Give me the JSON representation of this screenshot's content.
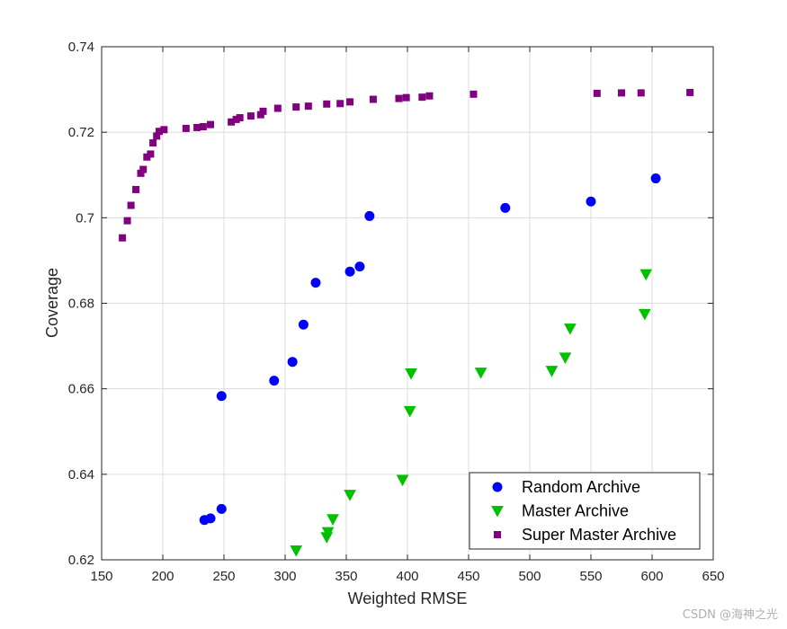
{
  "chart_data": {
    "type": "scatter",
    "xlabel": "Weighted RMSE",
    "ylabel": "Coverage",
    "xlim": [
      150,
      650
    ],
    "ylim": [
      0.62,
      0.74
    ],
    "xticks": [
      "150",
      "200",
      "250",
      "300",
      "350",
      "400",
      "450",
      "500",
      "550",
      "600",
      "650"
    ],
    "yticks": [
      "0.62",
      "0.64",
      "0.66",
      "0.68",
      "0.7",
      "0.72",
      "0.74"
    ],
    "grid": true,
    "legend_position": "bottom-right",
    "series": [
      {
        "name": "Random Archive",
        "marker": "circle",
        "color": "#0000ff",
        "points": [
          [
            234,
            0.6293
          ],
          [
            239,
            0.6297
          ],
          [
            248,
            0.6319
          ],
          [
            248,
            0.6583
          ],
          [
            291,
            0.6619
          ],
          [
            306,
            0.6663
          ],
          [
            315,
            0.675
          ],
          [
            325,
            0.6848
          ],
          [
            353,
            0.6874
          ],
          [
            361,
            0.6886
          ],
          [
            369,
            0.7004
          ],
          [
            480,
            0.7023
          ],
          [
            550,
            0.7038
          ],
          [
            603,
            0.7092
          ]
        ]
      },
      {
        "name": "Master Archive",
        "marker": "triangle-down",
        "color": "#00c000",
        "points": [
          [
            309,
            0.6222
          ],
          [
            334,
            0.6253
          ],
          [
            335,
            0.6265
          ],
          [
            339,
            0.6295
          ],
          [
            353,
            0.6352
          ],
          [
            396,
            0.6387
          ],
          [
            402,
            0.6548
          ],
          [
            403,
            0.6636
          ],
          [
            460,
            0.6638
          ],
          [
            518,
            0.6642
          ],
          [
            529,
            0.6673
          ],
          [
            533,
            0.6741
          ],
          [
            594,
            0.6775
          ],
          [
            595,
            0.6868
          ]
        ]
      },
      {
        "name": "Super Master Archive",
        "marker": "square",
        "color": "#800080",
        "points": [
          [
            167,
            0.6953
          ],
          [
            171,
            0.6993
          ],
          [
            174,
            0.7029
          ],
          [
            178,
            0.7066
          ],
          [
            182,
            0.7104
          ],
          [
            184,
            0.7113
          ],
          [
            187,
            0.7142
          ],
          [
            190,
            0.7149
          ],
          [
            192,
            0.7175
          ],
          [
            195,
            0.7191
          ],
          [
            197,
            0.7202
          ],
          [
            201,
            0.7206
          ],
          [
            219,
            0.7209
          ],
          [
            228,
            0.7211
          ],
          [
            233,
            0.7213
          ],
          [
            239,
            0.7218
          ],
          [
            256,
            0.7224
          ],
          [
            260,
            0.723
          ],
          [
            263,
            0.7234
          ],
          [
            272,
            0.7238
          ],
          [
            280,
            0.7241
          ],
          [
            282,
            0.7249
          ],
          [
            294,
            0.7256
          ],
          [
            309,
            0.7259
          ],
          [
            319,
            0.7261
          ],
          [
            334,
            0.7266
          ],
          [
            345,
            0.7267
          ],
          [
            353,
            0.7271
          ],
          [
            372,
            0.7277
          ],
          [
            393,
            0.7279
          ],
          [
            399,
            0.7281
          ],
          [
            412,
            0.7282
          ],
          [
            418,
            0.7285
          ],
          [
            454,
            0.7289
          ],
          [
            555,
            0.7291
          ],
          [
            575,
            0.7292
          ],
          [
            591,
            0.7292
          ],
          [
            631,
            0.7293
          ]
        ]
      }
    ]
  },
  "watermark": "CSDN @海神之光"
}
